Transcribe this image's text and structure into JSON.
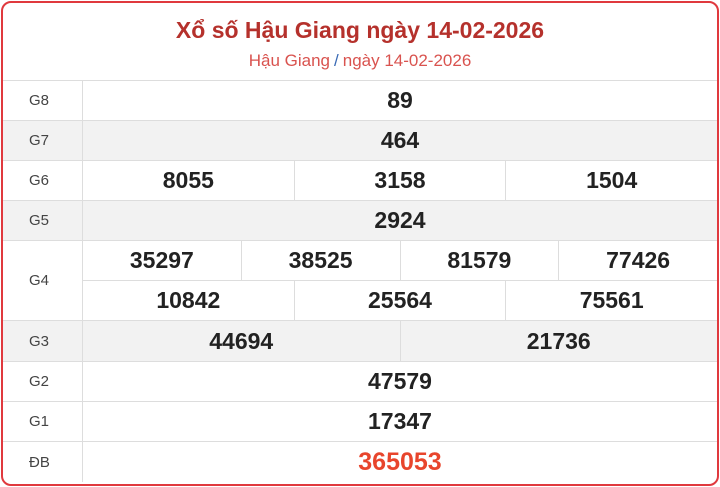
{
  "header": {
    "title": "Xổ số Hậu Giang ngày 14-02-2026",
    "breadcrumb_province": "Hậu Giang",
    "breadcrumb_separator": "/",
    "breadcrumb_date": "ngày 14-02-2026"
  },
  "colors": {
    "border": "#e0393e",
    "title": "#b5312c",
    "special_prize": "#e8452c"
  },
  "prizes": [
    {
      "label": "G8",
      "lines": [
        [
          "89"
        ]
      ]
    },
    {
      "label": "G7",
      "lines": [
        [
          "464"
        ]
      ]
    },
    {
      "label": "G6",
      "lines": [
        [
          "8055",
          "3158",
          "1504"
        ]
      ]
    },
    {
      "label": "G5",
      "lines": [
        [
          "2924"
        ]
      ]
    },
    {
      "label": "G4",
      "lines": [
        [
          "35297",
          "38525",
          "81579",
          "77426"
        ],
        [
          "10842",
          "25564",
          "75561"
        ]
      ]
    },
    {
      "label": "G3",
      "lines": [
        [
          "44694",
          "21736"
        ]
      ]
    },
    {
      "label": "G2",
      "lines": [
        [
          "47579"
        ]
      ]
    },
    {
      "label": "G1",
      "lines": [
        [
          "17347"
        ]
      ]
    },
    {
      "label": "ĐB",
      "lines": [
        [
          "365053"
        ]
      ]
    }
  ]
}
